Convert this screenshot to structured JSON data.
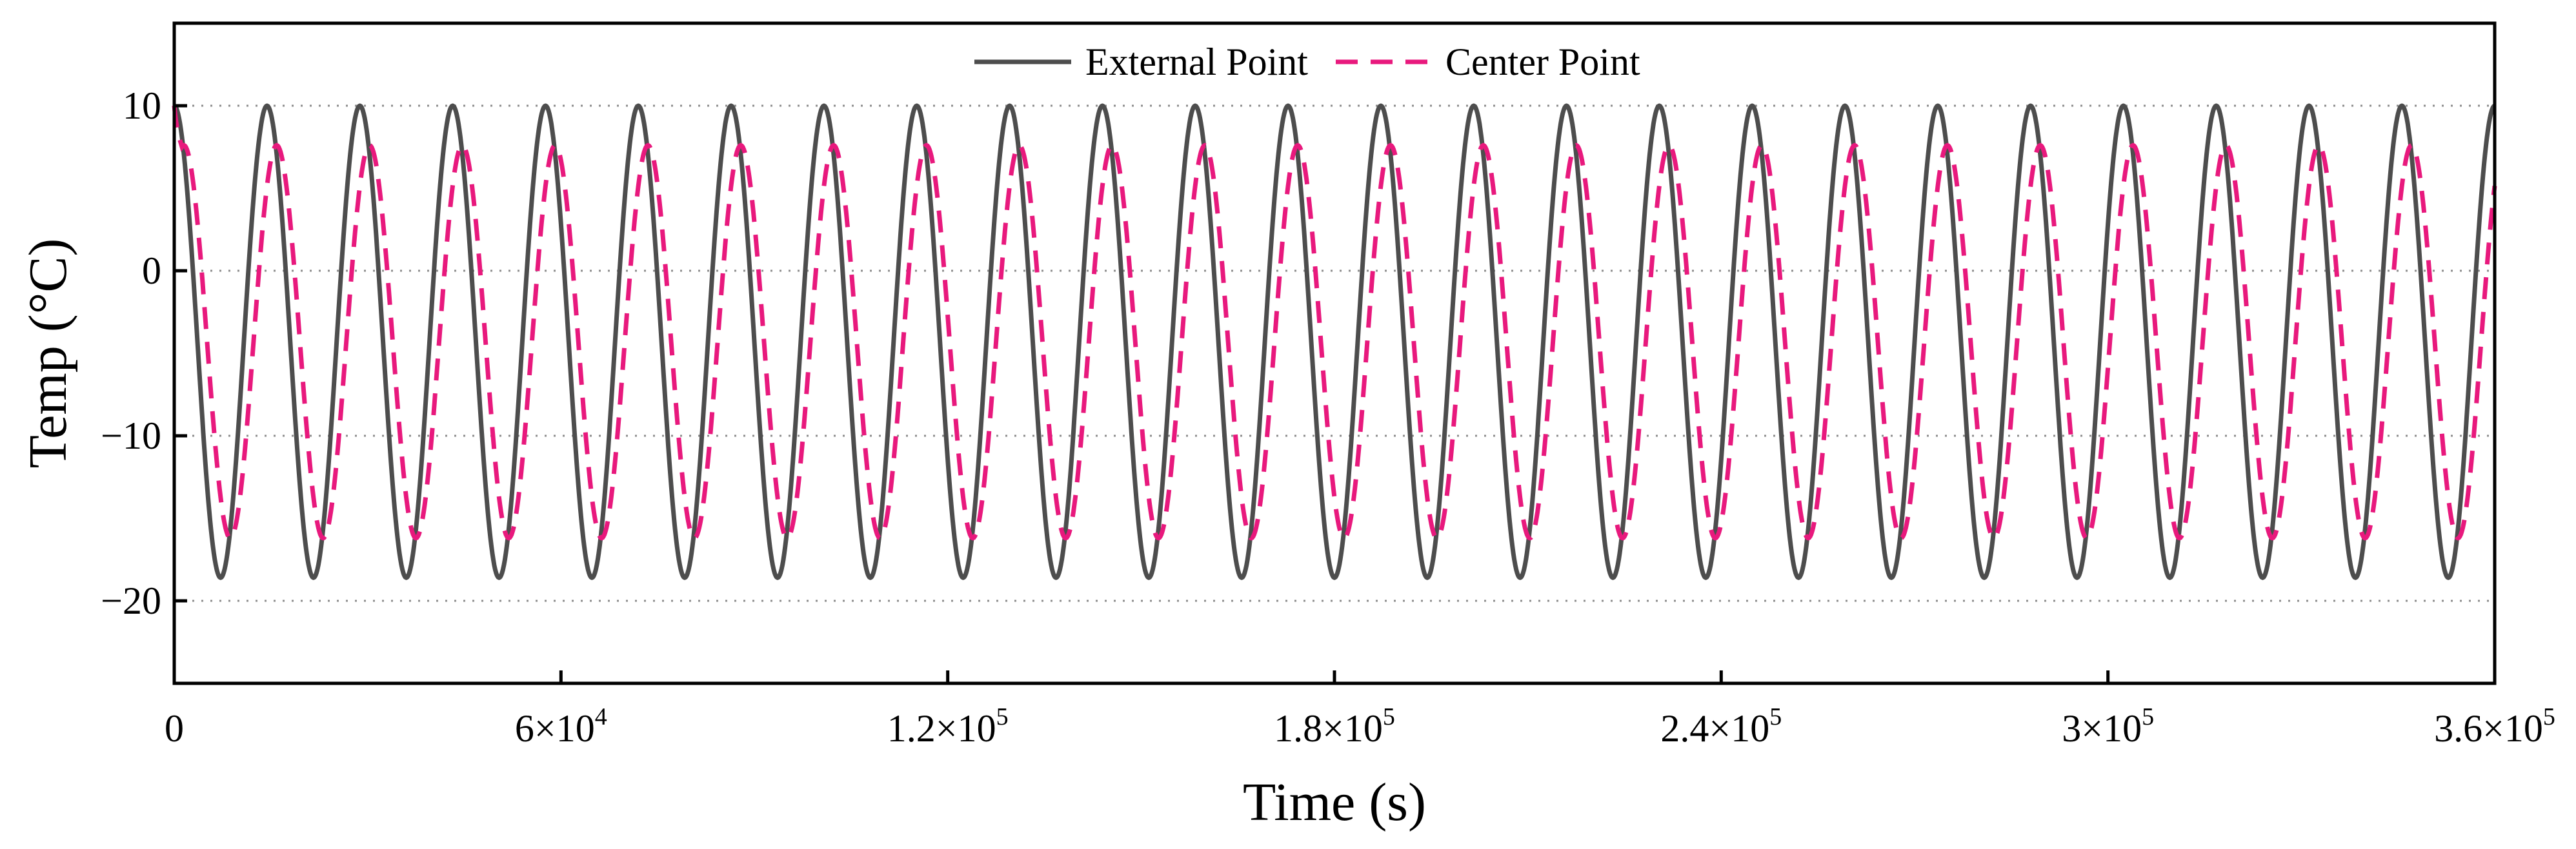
{
  "chart_data": {
    "type": "line",
    "title": "",
    "xlabel": "Time (s)",
    "ylabel": "Temp (°C)",
    "xlim": [
      0,
      360000
    ],
    "ylim": [
      -25,
      15
    ],
    "grid": "horizontal dotted at y ticks",
    "legend_position": "top-center",
    "x_ticks": [
      {
        "value": 0,
        "mantissa": "0",
        "exponent": ""
      },
      {
        "value": 60000,
        "mantissa": "6×10",
        "exponent": "4"
      },
      {
        "value": 120000,
        "mantissa": "1.2×10",
        "exponent": "5"
      },
      {
        "value": 180000,
        "mantissa": "1.8×10",
        "exponent": "5"
      },
      {
        "value": 240000,
        "mantissa": "2.4×10",
        "exponent": "5"
      },
      {
        "value": 300000,
        "mantissa": "3×10",
        "exponent": "5"
      },
      {
        "value": 360000,
        "mantissa": "3.6×10",
        "exponent": "5"
      }
    ],
    "y_ticks": [
      {
        "value": 10,
        "label": "10"
      },
      {
        "value": 0,
        "label": "0"
      },
      {
        "value": -10,
        "label": "−10"
      },
      {
        "value": -20,
        "label": "−20"
      }
    ],
    "period_s": 14400,
    "series": [
      {
        "name": "External Point",
        "style": "solid",
        "color": "#4d4d4d",
        "max": 10,
        "min": -18.6,
        "x": [
          0,
          7200,
          14400
        ],
        "values": [
          10,
          -18.6,
          10
        ],
        "pattern": "repeats every 14400 s from 0 to 360000 s"
      },
      {
        "name": "Center Point",
        "style": "dashed",
        "color": "#e8197d",
        "max": 7.6,
        "min": -16.2,
        "x": [
          0,
          900,
          8700,
          16200
        ],
        "values": [
          10,
          6.8,
          -16.2,
          7.6
        ],
        "pattern": "after start transient, repeats every 14400 s lagging External Point by ~1500 s"
      }
    ]
  }
}
